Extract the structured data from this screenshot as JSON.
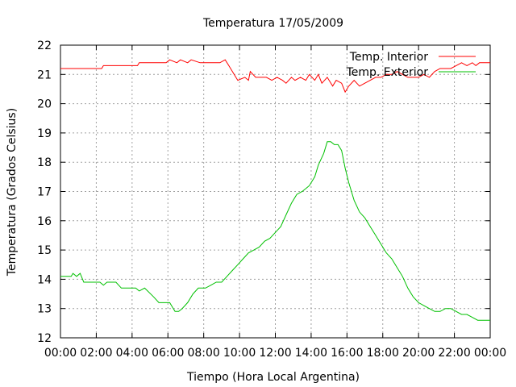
{
  "chart_data": {
    "type": "line",
    "title": "Temperatura 17/05/2009",
    "xlabel": "Tiempo (Hora Local Argentina)",
    "ylabel": "Temperatura (Grados Celsius)",
    "xlim": [
      0,
      24
    ],
    "ylim": [
      12,
      22
    ],
    "grid": true,
    "legend_position": "top-right",
    "x_ticks": [
      {
        "value": 0,
        "label": "00:00"
      },
      {
        "value": 2,
        "label": "02:00"
      },
      {
        "value": 4,
        "label": "04:00"
      },
      {
        "value": 6,
        "label": "06:00"
      },
      {
        "value": 8,
        "label": "08:00"
      },
      {
        "value": 10,
        "label": "10:00"
      },
      {
        "value": 12,
        "label": "12:00"
      },
      {
        "value": 14,
        "label": "14:00"
      },
      {
        "value": 16,
        "label": "16:00"
      },
      {
        "value": 18,
        "label": "18:00"
      },
      {
        "value": 20,
        "label": "20:00"
      },
      {
        "value": 22,
        "label": "22:00"
      },
      {
        "value": 24,
        "label": "00:00"
      }
    ],
    "y_ticks": [
      {
        "value": 12,
        "label": "12"
      },
      {
        "value": 13,
        "label": "13"
      },
      {
        "value": 14,
        "label": "14"
      },
      {
        "value": 15,
        "label": "15"
      },
      {
        "value": 16,
        "label": "16"
      },
      {
        "value": 17,
        "label": "17"
      },
      {
        "value": 18,
        "label": "18"
      },
      {
        "value": 19,
        "label": "19"
      },
      {
        "value": 20,
        "label": "20"
      },
      {
        "value": 21,
        "label": "21"
      },
      {
        "value": 22,
        "label": "22"
      }
    ],
    "series": [
      {
        "name": "Temp. Interior",
        "color": "#ff0000",
        "x": [
          0,
          2.3,
          2.4,
          4.3,
          4.4,
          5.9,
          6.1,
          6.5,
          6.7,
          7.1,
          7.3,
          7.8,
          8.0,
          8.9,
          9.2,
          9.4,
          9.7,
          9.9,
          10.3,
          10.5,
          10.6,
          10.9,
          11.2,
          11.5,
          11.8,
          12.1,
          12.4,
          12.6,
          12.9,
          13.1,
          13.4,
          13.7,
          13.9,
          14.2,
          14.4,
          14.6,
          14.9,
          15.2,
          15.4,
          15.7,
          15.9,
          16.1,
          16.4,
          16.7,
          17.0,
          17.3,
          17.6,
          17.9,
          18.2,
          18.5,
          18.8,
          19.1,
          19.4,
          19.7,
          20.0,
          20.3,
          20.6,
          20.9,
          21.2,
          21.5,
          21.8,
          22.1,
          22.4,
          22.7,
          23.0,
          23.2,
          23.4,
          23.6,
          24
        ],
        "y": [
          21.2,
          21.2,
          21.3,
          21.3,
          21.4,
          21.4,
          21.5,
          21.4,
          21.5,
          21.4,
          21.5,
          21.4,
          21.4,
          21.4,
          21.5,
          21.3,
          21.0,
          20.8,
          20.9,
          20.8,
          21.1,
          20.9,
          20.9,
          20.9,
          20.8,
          20.9,
          20.8,
          20.7,
          20.9,
          20.8,
          20.9,
          20.8,
          21.0,
          20.8,
          21.0,
          20.7,
          20.9,
          20.6,
          20.8,
          20.7,
          20.4,
          20.6,
          20.8,
          20.6,
          20.7,
          20.8,
          20.9,
          20.9,
          21.0,
          21.0,
          21.1,
          21.0,
          20.9,
          20.9,
          20.9,
          21.0,
          20.9,
          21.1,
          21.2,
          21.2,
          21.2,
          21.3,
          21.4,
          21.3,
          21.4,
          21.3,
          21.4,
          21.4,
          21.4
        ]
      },
      {
        "name": "Temp. Exterior",
        "color": "#00c000",
        "x": [
          0,
          0.6,
          0.7,
          0.9,
          1.1,
          1.3,
          2.2,
          2.4,
          2.6,
          3.1,
          3.4,
          4.2,
          4.4,
          4.7,
          5.2,
          5.5,
          6.1,
          6.4,
          6.6,
          6.8,
          7.1,
          7.4,
          7.7,
          8.1,
          8.4,
          8.7,
          9.0,
          9.3,
          9.6,
          9.9,
          10.2,
          10.5,
          10.8,
          11.1,
          11.4,
          11.7,
          12.0,
          12.3,
          12.6,
          12.9,
          13.2,
          13.5,
          13.7,
          13.9,
          14.2,
          14.4,
          14.7,
          14.9,
          15.1,
          15.3,
          15.5,
          15.7,
          15.9,
          16.1,
          16.4,
          16.7,
          17.0,
          17.3,
          17.6,
          17.9,
          18.2,
          18.5,
          18.8,
          19.1,
          19.4,
          19.7,
          20.0,
          20.3,
          20.6,
          20.9,
          21.2,
          21.5,
          21.8,
          22.1,
          22.4,
          22.7,
          23.0,
          23.3,
          23.6,
          24
        ],
        "y": [
          14.1,
          14.1,
          14.2,
          14.1,
          14.2,
          13.9,
          13.9,
          13.8,
          13.9,
          13.9,
          13.7,
          13.7,
          13.6,
          13.7,
          13.4,
          13.2,
          13.2,
          12.9,
          12.9,
          13.0,
          13.2,
          13.5,
          13.7,
          13.7,
          13.8,
          13.9,
          13.9,
          14.1,
          14.3,
          14.5,
          14.7,
          14.9,
          15.0,
          15.1,
          15.3,
          15.4,
          15.6,
          15.8,
          16.2,
          16.6,
          16.9,
          17.0,
          17.1,
          17.2,
          17.5,
          17.9,
          18.3,
          18.7,
          18.7,
          18.6,
          18.6,
          18.4,
          17.8,
          17.3,
          16.7,
          16.3,
          16.1,
          15.8,
          15.5,
          15.2,
          14.9,
          14.7,
          14.4,
          14.1,
          13.7,
          13.4,
          13.2,
          13.1,
          13.0,
          12.9,
          12.9,
          13.0,
          13.0,
          12.9,
          12.8,
          12.8,
          12.7,
          12.6,
          12.6,
          12.6
        ]
      }
    ]
  }
}
